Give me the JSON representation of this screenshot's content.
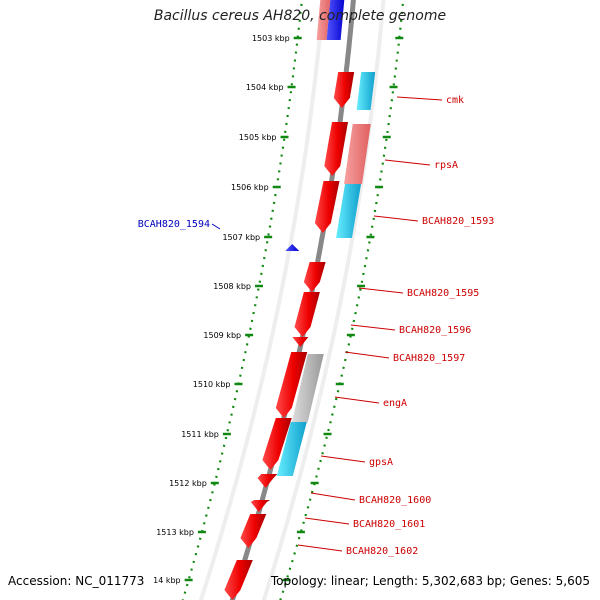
{
  "title": "Bacillus cereus AH820, complete genome",
  "footer": {
    "accession": "Accession: NC_011773",
    "topology": "Topology: linear; Length: 5,302,683 bp; Genes: 5,605"
  },
  "colors": {
    "forward_gene": "#ee1111",
    "forward_gene_light": "#f08080",
    "reverse_gene": "#1111ee",
    "cyan_feature": "#22ccee",
    "gray_feature": "#bbbbbb",
    "label_red": "#cc0000",
    "label_blue": "#0000bb",
    "scale_dots": "#118811",
    "backbone": "#888888"
  },
  "ticks": [
    "1503 kbp",
    "1504 kbp",
    "1505 kbp",
    "1506 kbp",
    "1507 kbp",
    "1508 kbp",
    "1509 kbp",
    "1510 kbp",
    "1511 kbp",
    "1512 kbp",
    "1513 kbp",
    "14 kbp"
  ],
  "genes": [
    {
      "label": "cmk",
      "strand": "forward"
    },
    {
      "label": "rpsA",
      "strand": "forward"
    },
    {
      "label": "BCAH820_1593",
      "strand": "forward"
    },
    {
      "label": "BCAH820_1594",
      "strand": "reverse"
    },
    {
      "label": "BCAH820_1595",
      "strand": "forward"
    },
    {
      "label": "BCAH820_1596",
      "strand": "forward"
    },
    {
      "label": "BCAH820_1597",
      "strand": "forward"
    },
    {
      "label": "engA",
      "strand": "forward"
    },
    {
      "label": "gpsA",
      "strand": "forward"
    },
    {
      "label": "BCAH820_1600",
      "strand": "forward"
    },
    {
      "label": "BCAH820_1601",
      "strand": "forward"
    },
    {
      "label": "BCAH820_1602",
      "strand": "forward"
    }
  ]
}
